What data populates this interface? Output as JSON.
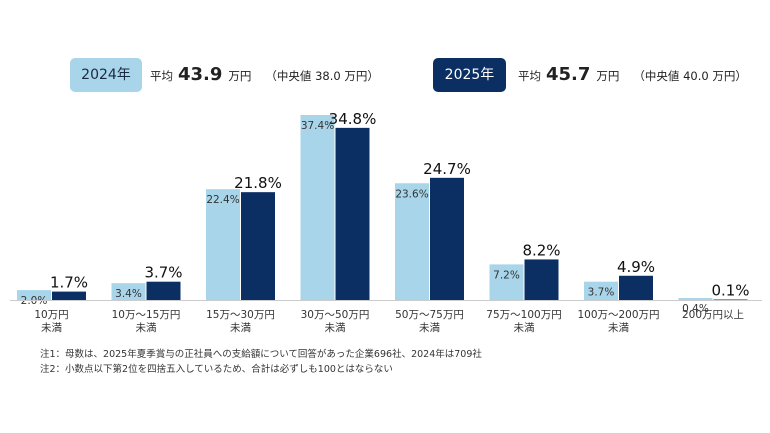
{
  "legend": {
    "y2024": {
      "label": "2024年",
      "avg_label": "平均",
      "avg_value": "43.9",
      "unit": "万円",
      "median": "（中央値 38.0 万円）",
      "color": "#a8d5ea"
    },
    "y2025": {
      "label": "2025年",
      "avg_label": "平均",
      "avg_value": "45.7",
      "unit": "万円",
      "median": "（中央値 40.0 万円）",
      "color": "#0b2f63"
    }
  },
  "chart_data": {
    "type": "bar",
    "categories": [
      [
        "10万円",
        "未満"
      ],
      [
        "10万～15万円",
        "未満"
      ],
      [
        "15万～30万円",
        "未満"
      ],
      [
        "30万～50万円",
        "未満"
      ],
      [
        "50万～75万円",
        "未満"
      ],
      [
        "75万～100万円",
        "未満"
      ],
      [
        "100万～200万円",
        "未満"
      ],
      [
        "200万円以上"
      ]
    ],
    "series": [
      {
        "name": "2024年",
        "color": "#a8d5ea",
        "values": [
          2.0,
          3.4,
          22.4,
          37.4,
          23.6,
          7.2,
          3.7,
          0.4
        ],
        "labels": [
          "2.0%",
          "3.4%",
          "22.4%",
          "37.4%",
          "23.6%",
          "7.2%",
          "3.7%",
          "0.4%"
        ]
      },
      {
        "name": "2025年",
        "color": "#0b2f63",
        "values": [
          1.7,
          3.7,
          21.8,
          34.8,
          24.7,
          8.2,
          4.9,
          0.1
        ],
        "labels": [
          "1.7%",
          "3.7%",
          "21.8%",
          "34.8%",
          "24.7%",
          "8.2%",
          "4.9%",
          "0.1%"
        ]
      }
    ],
    "ylim": [
      0,
      37.4
    ]
  },
  "notes": [
    "注1：母数は、2025年夏季賞与の正社員への支給額について回答があった企業696社、2024年は709社",
    "注2：小数点以下第2位を四捨五入しているため、合計は必ずしも100とはならない"
  ]
}
